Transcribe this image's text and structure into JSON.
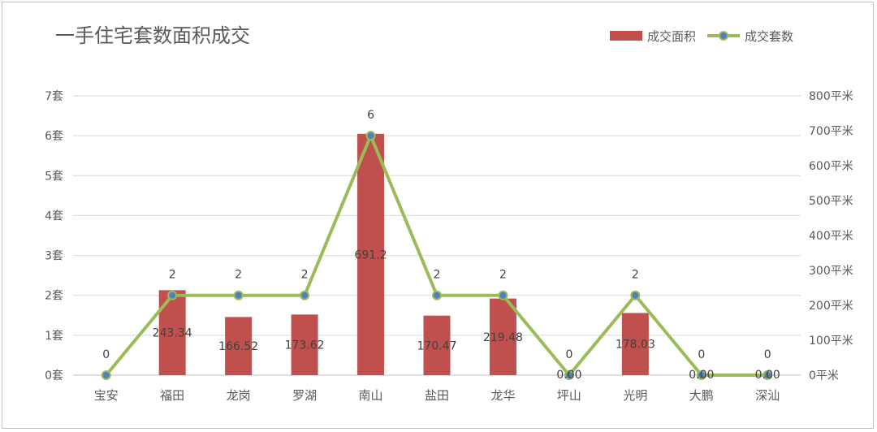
{
  "chart_data": {
    "type": "bar+line",
    "title": "一手住宅套数面积成交",
    "categories": [
      "宝安",
      "福田",
      "龙岗",
      "罗湖",
      "南山",
      "盐田",
      "龙华",
      "坪山",
      "光明",
      "大鹏",
      "深汕"
    ],
    "series": [
      {
        "name": "成交面积",
        "type": "bar",
        "axis": "right",
        "color": "#c0504d",
        "values": [
          0,
          243.34,
          166.52,
          173.62,
          691.2,
          170.47,
          219.48,
          0,
          178.03,
          0,
          0
        ],
        "labels": [
          "",
          "243.34",
          "166.52",
          "173.62",
          "691.2",
          "170.47",
          "219.48",
          "0.00",
          "178.03",
          "0.00",
          "0.00"
        ]
      },
      {
        "name": "成交套数",
        "type": "line",
        "axis": "left",
        "color": "#9bbb59",
        "marker_color": "#4f81bd",
        "values": [
          0,
          2,
          2,
          2,
          6,
          2,
          2,
          0,
          2,
          0,
          0
        ],
        "labels": [
          "0",
          "2",
          "2",
          "2",
          "6",
          "2",
          "2",
          "0",
          "2",
          "0",
          "0"
        ]
      }
    ],
    "y_left": {
      "range": [
        0,
        7
      ],
      "ticks": [
        "0套",
        "1套",
        "2套",
        "3套",
        "4套",
        "5套",
        "6套",
        "7套"
      ]
    },
    "y_right": {
      "range": [
        0,
        800
      ],
      "ticks": [
        "0平米",
        "100平米",
        "200平米",
        "300平米",
        "400平米",
        "500平米",
        "600平米",
        "700平米",
        "800平米"
      ]
    },
    "grid": true,
    "legend": "top-right"
  }
}
